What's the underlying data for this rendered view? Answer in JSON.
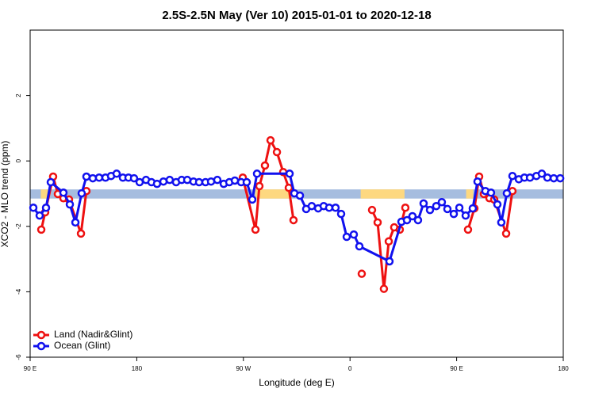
{
  "chart_data": {
    "type": "line",
    "title": "2.5S-2.5N May (Ver 10)   2015-01-01 to 2020-12-18",
    "xlabel": "Longitude (deg E)",
    "ylabel": "XCO2 - MLO trend (ppm)",
    "xlim": [
      90,
      540
    ],
    "ylim": [
      -6,
      4
    ],
    "xticks": [
      {
        "value": 90,
        "label": "90 E"
      },
      180,
      {
        "value": 270,
        "label": "90 W"
      },
      {
        "value": 360,
        "label": "0"
      },
      {
        "value": 450,
        "label": "90 E"
      },
      {
        "value": 540,
        "label": "180"
      }
    ],
    "yticks": [
      -6,
      -4,
      -2,
      0,
      2
    ],
    "legend": "bottom-left",
    "band": {
      "range": [
        -1.15,
        -0.87
      ],
      "color": "#a6bddf",
      "highlight_color": "#fdd880",
      "highlights": [
        [
          99,
          105
        ],
        [
          280,
          310
        ],
        [
          369,
          406
        ],
        [
          458,
          464
        ]
      ]
    },
    "series": [
      {
        "name": "Land (Nadir&Glint)",
        "color": "#ee1111",
        "x": [
          99.4,
          102.7,
          109.4,
          113.4,
          118.1,
          122.8,
          132.9,
          137.5,
          null,
          269.5,
          280.2,
          283.5,
          288.2,
          292.9,
          298.3,
          303.6,
          308.3,
          312.3,
          null,
          369.9,
          null,
          378.6,
          383.3,
          388.6,
          392.7,
          397.3,
          402.0,
          406.7,
          null,
          459.6,
          465.0,
          469.0,
          473.0,
          477.7,
          481.7,
          491.8,
          497.1
        ],
        "values": [
          -2.1,
          -1.57,
          -0.48,
          -1.01,
          -1.14,
          -1.18,
          -2.22,
          -0.92,
          null,
          -0.51,
          -2.1,
          -0.77,
          -0.14,
          0.63,
          0.27,
          -0.34,
          -0.82,
          -1.81,
          null,
          -3.45,
          null,
          -1.5,
          -1.88,
          -3.91,
          -2.46,
          -2.03,
          -2.1,
          -1.43,
          null,
          -2.1,
          -1.45,
          -0.48,
          -1.01,
          -1.14,
          -1.18,
          -2.22,
          -0.92
        ]
      },
      {
        "name": "Ocean (Glint)",
        "color": "#1111ee",
        "x": [
          92.7,
          98.0,
          103.4,
          107.4,
          118.1,
          123.5,
          128.2,
          133.5,
          137.5,
          142.9,
          148.2,
          153.6,
          158.3,
          163.0,
          168.3,
          173.0,
          177.7,
          182.4,
          187.8,
          192.4,
          197.1,
          202.5,
          207.8,
          213.2,
          217.9,
          222.6,
          227.9,
          232.6,
          238.0,
          242.7,
          248.0,
          253.4,
          258.1,
          262.8,
          268.1,
          272.8,
          277.5,
          281.5,
          309.0,
          313.0,
          317.7,
          323.0,
          327.7,
          333.1,
          337.8,
          342.4,
          347.8,
          352.5,
          357.2,
          363.2,
          367.9,
          393.3,
          403.4,
          408.1,
          412.7,
          417.4,
          422.1,
          427.5,
          432.8,
          437.5,
          442.2,
          447.6,
          452.3,
          457.6,
          463.6,
          467.6,
          474.3,
          479.0,
          484.4,
          487.7,
          492.4,
          497.1,
          502.5,
          507.2,
          511.9,
          517.3,
          521.9,
          526.6,
          532.0,
          537.4
        ],
        "values": [
          -1.43,
          -1.67,
          -1.43,
          -0.65,
          -0.97,
          -1.33,
          -1.88,
          -0.99,
          -0.48,
          -0.53,
          -0.51,
          -0.51,
          -0.46,
          -0.39,
          -0.51,
          -0.51,
          -0.53,
          -0.65,
          -0.58,
          -0.65,
          -0.7,
          -0.63,
          -0.58,
          -0.65,
          -0.58,
          -0.58,
          -0.63,
          -0.65,
          -0.65,
          -0.63,
          -0.58,
          -0.7,
          -0.65,
          -0.6,
          -0.65,
          -0.65,
          -1.18,
          -0.39,
          -0.39,
          -0.99,
          -1.06,
          -1.47,
          -1.38,
          -1.45,
          -1.38,
          -1.43,
          -1.43,
          -1.62,
          -2.32,
          -2.25,
          -2.61,
          -3.07,
          -1.86,
          -1.81,
          -1.69,
          -1.81,
          -1.3,
          -1.5,
          -1.38,
          -1.26,
          -1.47,
          -1.62,
          -1.43,
          -1.67,
          -1.45,
          -0.63,
          -0.92,
          -0.97,
          -1.33,
          -1.88,
          -0.99,
          -0.46,
          -0.56,
          -0.51,
          -0.51,
          -0.46,
          -0.39,
          -0.51,
          -0.53,
          -0.53
        ]
      }
    ]
  }
}
